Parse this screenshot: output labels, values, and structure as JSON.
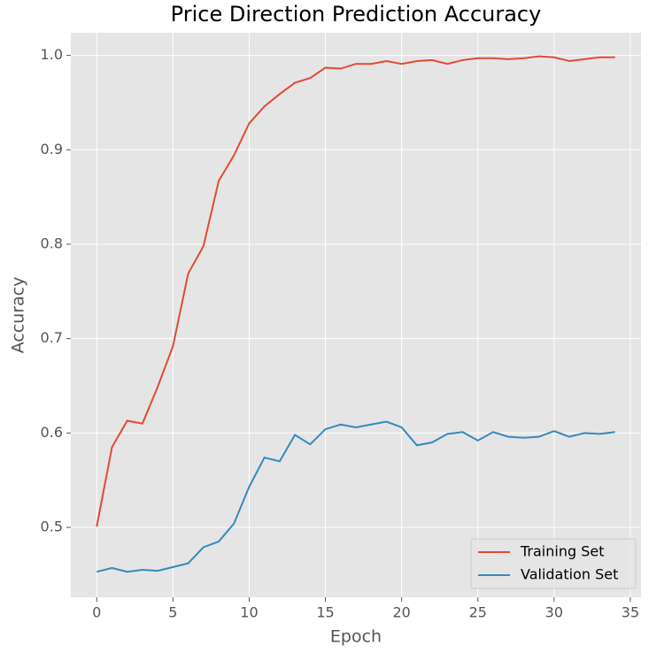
{
  "chart_data": {
    "type": "line",
    "title": "Price Direction Prediction Accuracy",
    "xlabel": "Epoch",
    "ylabel": "Accuracy",
    "x": [
      0,
      1,
      2,
      3,
      4,
      5,
      6,
      7,
      8,
      9,
      10,
      11,
      12,
      13,
      14,
      15,
      16,
      17,
      18,
      19,
      20,
      21,
      22,
      23,
      24,
      25,
      26,
      27,
      28,
      29,
      30,
      31,
      32,
      33,
      34
    ],
    "series": [
      {
        "name": "Training Set",
        "color": "#E24A33",
        "values": [
          0.501,
          0.585,
          0.613,
          0.61,
          0.649,
          0.692,
          0.769,
          0.798,
          0.867,
          0.894,
          0.928,
          0.946,
          0.959,
          0.971,
          0.976,
          0.987,
          0.986,
          0.991,
          0.991,
          0.994,
          0.991,
          0.994,
          0.995,
          0.991,
          0.995,
          0.997,
          0.997,
          0.996,
          0.997,
          0.999,
          0.998,
          0.994,
          0.996,
          0.998,
          0.998
        ]
      },
      {
        "name": "Validation Set",
        "color": "#348ABD",
        "values": [
          0.453,
          0.457,
          0.453,
          0.455,
          0.454,
          0.458,
          0.462,
          0.479,
          0.485,
          0.504,
          0.543,
          0.574,
          0.57,
          0.598,
          0.588,
          0.604,
          0.609,
          0.606,
          0.609,
          0.612,
          0.606,
          0.587,
          0.59,
          0.599,
          0.601,
          0.592,
          0.601,
          0.596,
          0.595,
          0.596,
          0.602,
          0.596,
          0.6,
          0.599,
          0.601
        ]
      }
    ],
    "xlim": [
      -1.7,
      35.7
    ],
    "xticks": [
      0,
      5,
      10,
      15,
      20,
      25,
      30,
      35
    ],
    "ylim": [
      0.426,
      1.024
    ],
    "yticks": [
      0.5,
      0.6,
      0.7,
      0.8,
      0.9,
      {
        "value": 1,
        "label": "1.0"
      }
    ],
    "grid": true,
    "legend": "lower right"
  }
}
